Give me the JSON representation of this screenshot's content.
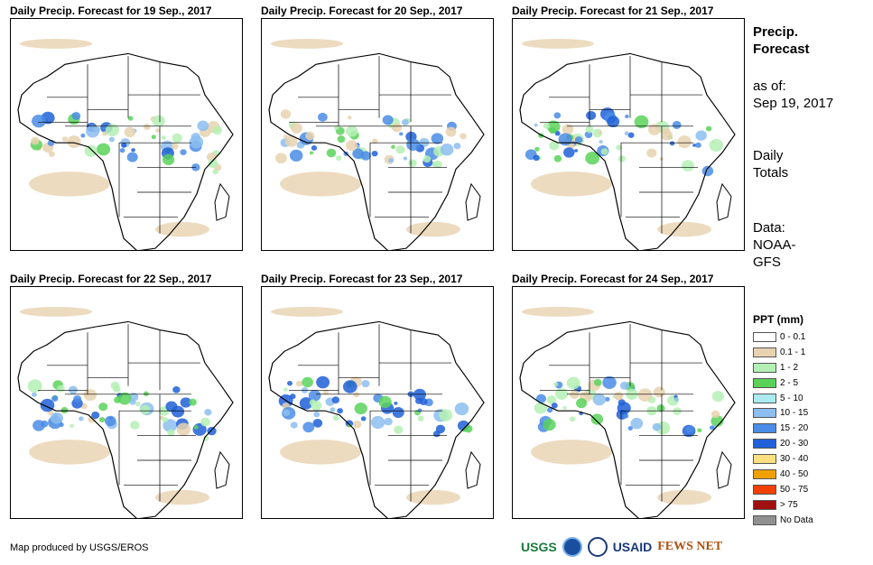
{
  "panels": [
    {
      "title": "Daily Precip. Forecast for 19 Sep., 2017"
    },
    {
      "title": "Daily Precip. Forecast for 20 Sep., 2017"
    },
    {
      "title": "Daily Precip. Forecast for 21 Sep., 2017"
    },
    {
      "title": "Daily Precip. Forecast for 22 Sep., 2017"
    },
    {
      "title": "Daily Precip. Forecast for 23 Sep., 2017"
    },
    {
      "title": "Daily Precip. Forecast for 24 Sep., 2017"
    }
  ],
  "side": {
    "heading_line1": "Precip.",
    "heading_line2": "Forecast",
    "asof_label": "as of:",
    "asof_date": "Sep 19, 2017",
    "daily_line1": "Daily",
    "daily_line2": "Totals",
    "data_line1": "Data:",
    "data_line2": "NOAA-",
    "data_line3": "GFS"
  },
  "legend": {
    "title": "PPT (mm)",
    "items": [
      {
        "label": "0 - 0.1",
        "color": "#ffffff"
      },
      {
        "label": "0.1 - 1",
        "color": "#e8d2b0"
      },
      {
        "label": "1 - 2",
        "color": "#b4f0b4"
      },
      {
        "label": "2 - 5",
        "color": "#5ad25a"
      },
      {
        "label": "5 - 10",
        "color": "#aaeaf0"
      },
      {
        "label": "10 - 15",
        "color": "#8cbef0"
      },
      {
        "label": "15 - 20",
        "color": "#4a8ce6"
      },
      {
        "label": "20 - 30",
        "color": "#2060d8"
      },
      {
        "label": "30 - 40",
        "color": "#ffe080"
      },
      {
        "label": "40 - 50",
        "color": "#f0a000"
      },
      {
        "label": "50 - 75",
        "color": "#f04000"
      },
      {
        "label": "> 75",
        "color": "#a01010"
      },
      {
        "label": "No Data",
        "color": "#909090"
      }
    ]
  },
  "footer": {
    "credit": "Map produced by USGS/EROS"
  },
  "logos": {
    "usgs": "USGS",
    "usaid": "USAID",
    "fewsnet": "FEWS NET"
  }
}
